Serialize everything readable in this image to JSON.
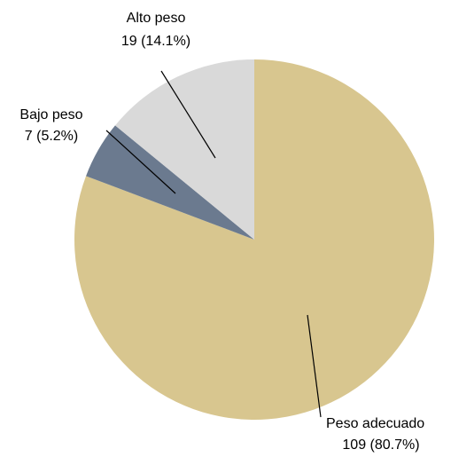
{
  "chart_data": {
    "type": "pie",
    "title": "",
    "start_angle_deg": 0,
    "direction": "clockwise",
    "slices": [
      {
        "label": "Peso adecuado",
        "value": 109,
        "percent_text": "109 (80.7%)",
        "color": "#D8C68F"
      },
      {
        "label": "Bajo peso",
        "value": 7,
        "percent_text": "7 (5.2%)",
        "color": "#6B7A8F"
      },
      {
        "label": "Alto peso",
        "value": 19,
        "percent_text": "19 (14.1%)",
        "color": "#D9D9D9"
      }
    ],
    "legend": "none",
    "label_style": "outside with leader lines"
  }
}
